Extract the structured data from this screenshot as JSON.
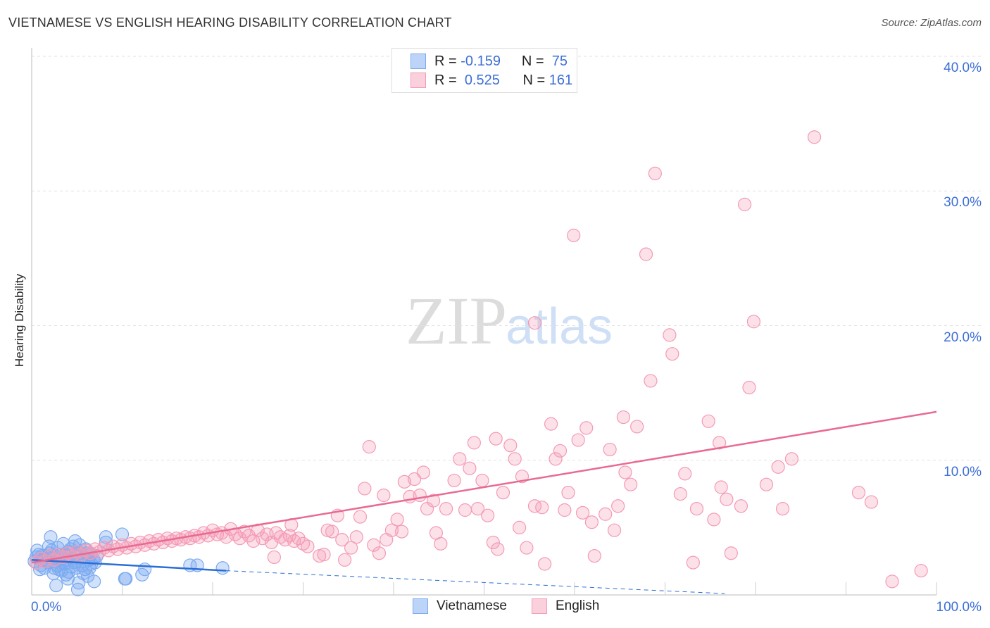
{
  "chart_data": {
    "type": "scatter",
    "title": "VIETNAMESE VS ENGLISH HEARING DISABILITY CORRELATION CHART",
    "source": "Source: ZipAtlas.com",
    "xlabel": "",
    "ylabel": "Hearing Disability",
    "xlim": [
      0,
      100
    ],
    "ylim": [
      0,
      40
    ],
    "x_tick_labels": [
      "0.0%",
      "100.0%"
    ],
    "y_ticks": [
      10,
      20,
      30,
      40
    ],
    "y_tick_labels": [
      "10.0%",
      "20.0%",
      "30.0%",
      "40.0%"
    ],
    "grid": true,
    "watermark": "ZIPatlas",
    "legend": {
      "placement": "top-center",
      "items": [
        {
          "name": "Vietnamese",
          "r_label": "R =",
          "r": "-0.159",
          "n_label": "N =",
          "n": "75",
          "color": "#7aaaf0"
        },
        {
          "name": "English",
          "r_label": "R =",
          "r": "0.525",
          "n_label": "N =",
          "n": "161",
          "color": "#f49ab5"
        }
      ]
    },
    "series": [
      {
        "name": "Vietnamese",
        "color": "#7aaaf0",
        "line_color": "#2a6ed6",
        "trend": {
          "x0": 0,
          "y0": 2.6,
          "x1": 21.5,
          "y1": 1.8,
          "x_dash_end": 76.6,
          "y_dash_end": 0.1
        },
        "points": [
          [
            0.3,
            2.5
          ],
          [
            0.5,
            2.8
          ],
          [
            0.8,
            3.0
          ],
          [
            1,
            2.2
          ],
          [
            1.2,
            2.6
          ],
          [
            1.5,
            2.9
          ],
          [
            1.8,
            2.4
          ],
          [
            2,
            3.1
          ],
          [
            2.1,
            4.3
          ],
          [
            2.3,
            2.7
          ],
          [
            2.5,
            2.0
          ],
          [
            2.7,
            0.7
          ],
          [
            2.9,
            3.5
          ],
          [
            3.1,
            2.6
          ],
          [
            3.3,
            1.8
          ],
          [
            3.5,
            3.8
          ],
          [
            3.6,
            2.3
          ],
          [
            3.8,
            1.5
          ],
          [
            4,
            3.2
          ],
          [
            4.2,
            2.9
          ],
          [
            4.4,
            2.1
          ],
          [
            4.6,
            3.6
          ],
          [
            4.8,
            4.0
          ],
          [
            5,
            2.5
          ],
          [
            5.1,
            0.4
          ],
          [
            5.2,
            0.9
          ],
          [
            5.4,
            3.1
          ],
          [
            5.6,
            2.2
          ],
          [
            5.8,
            2.8
          ],
          [
            6,
            3.4
          ],
          [
            6.2,
            1.4
          ],
          [
            6.3,
            2.6
          ],
          [
            6.5,
            3.0
          ],
          [
            6.9,
            1.0
          ],
          [
            7,
            2.4
          ],
          [
            0.6,
            3.3
          ],
          [
            1.4,
            2.0
          ],
          [
            1.9,
            3.6
          ],
          [
            2.6,
            2.9
          ],
          [
            3,
            1.9
          ],
          [
            3.4,
            2.4
          ],
          [
            3.7,
            3.0
          ],
          [
            4.1,
            1.7
          ],
          [
            4.5,
            2.7
          ],
          [
            4.9,
            2.0
          ],
          [
            5.3,
            3.7
          ],
          [
            5.9,
            1.9
          ],
          [
            6.6,
            2.3
          ],
          [
            7.2,
            2.9
          ],
          [
            1.1,
            2.9
          ],
          [
            1.6,
            2.5
          ],
          [
            2.2,
            3.3
          ],
          [
            2.8,
            2.2
          ],
          [
            3.2,
            3.0
          ],
          [
            3.9,
            2.6
          ],
          [
            4.3,
            3.4
          ],
          [
            4.7,
            2.4
          ],
          [
            5.5,
            2.7
          ],
          [
            6.1,
            3.1
          ],
          [
            6.8,
            2.7
          ],
          [
            0.9,
            1.9
          ],
          [
            2.4,
            1.6
          ],
          [
            4.0,
            1.2
          ],
          [
            5.7,
            1.6
          ],
          [
            6.4,
            2.0
          ],
          [
            8.2,
            4.3
          ],
          [
            8.2,
            3.9
          ],
          [
            10.0,
            4.5
          ],
          [
            10.3,
            1.2
          ],
          [
            10.4,
            1.2
          ],
          [
            12.2,
            1.5
          ],
          [
            12.5,
            1.9
          ],
          [
            17.5,
            2.2
          ],
          [
            18.3,
            2.2
          ],
          [
            21.1,
            2.0
          ]
        ]
      },
      {
        "name": "English",
        "color": "#f49ab5",
        "line_color": "#e86a92",
        "trend": {
          "x0": 0,
          "y0": 2.4,
          "x1": 100,
          "y1": 13.6
        },
        "points": [
          [
            86.5,
            34.0
          ],
          [
            68.9,
            31.3
          ],
          [
            78.8,
            29.0
          ],
          [
            59.9,
            26.7
          ],
          [
            67.9,
            25.3
          ],
          [
            55.6,
            20.2
          ],
          [
            79.8,
            20.3
          ],
          [
            70.5,
            19.3
          ],
          [
            70.8,
            17.9
          ],
          [
            68.4,
            15.9
          ],
          [
            79.3,
            15.4
          ],
          [
            65.4,
            13.2
          ],
          [
            57.4,
            12.7
          ],
          [
            74.8,
            12.9
          ],
          [
            66.9,
            12.5
          ],
          [
            61.3,
            12.4
          ],
          [
            51.3,
            11.6
          ],
          [
            48.9,
            11.3
          ],
          [
            60.4,
            11.5
          ],
          [
            76.0,
            11.3
          ],
          [
            52.9,
            11.1
          ],
          [
            37.3,
            11.0
          ],
          [
            63.9,
            10.8
          ],
          [
            58.4,
            10.7
          ],
          [
            53.4,
            10.1
          ],
          [
            47.3,
            10.1
          ],
          [
            57.9,
            10.1
          ],
          [
            84.0,
            10.1
          ],
          [
            43.3,
            9.1
          ],
          [
            82.5,
            9.5
          ],
          [
            48.4,
            9.4
          ],
          [
            65.6,
            9.1
          ],
          [
            72.2,
            9.0
          ],
          [
            42.3,
            8.6
          ],
          [
            41.2,
            8.4
          ],
          [
            54.2,
            8.8
          ],
          [
            49.8,
            8.5
          ],
          [
            46.7,
            8.5
          ],
          [
            66.2,
            8.2
          ],
          [
            36.8,
            7.9
          ],
          [
            81.2,
            8.2
          ],
          [
            76.2,
            8.0
          ],
          [
            52.1,
            7.6
          ],
          [
            71.7,
            7.5
          ],
          [
            59.3,
            7.6
          ],
          [
            91.4,
            7.6
          ],
          [
            38.9,
            7.4
          ],
          [
            42.9,
            7.4
          ],
          [
            41.8,
            7.3
          ],
          [
            92.8,
            6.9
          ],
          [
            76.8,
            7.1
          ],
          [
            44.4,
            7.0
          ],
          [
            64.8,
            6.6
          ],
          [
            78.4,
            6.6
          ],
          [
            55.6,
            6.6
          ],
          [
            56.4,
            6.5
          ],
          [
            73.5,
            6.4
          ],
          [
            83.0,
            6.4
          ],
          [
            43.7,
            6.4
          ],
          [
            45.8,
            6.4
          ],
          [
            47.9,
            6.3
          ],
          [
            49.3,
            6.4
          ],
          [
            58.9,
            6.3
          ],
          [
            60.9,
            6.1
          ],
          [
            63.4,
            6.0
          ],
          [
            50.4,
            5.9
          ],
          [
            33.8,
            5.9
          ],
          [
            36.3,
            5.8
          ],
          [
            61.9,
            5.4
          ],
          [
            75.4,
            5.6
          ],
          [
            40.4,
            5.6
          ],
          [
            28.7,
            5.2
          ],
          [
            53.9,
            5.0
          ],
          [
            32.7,
            4.8
          ],
          [
            33.2,
            4.7
          ],
          [
            39.8,
            4.8
          ],
          [
            40.9,
            4.7
          ],
          [
            64.4,
            4.8
          ],
          [
            44.7,
            4.6
          ],
          [
            35.9,
            4.3
          ],
          [
            34.3,
            4.1
          ],
          [
            39.2,
            4.1
          ],
          [
            51.0,
            3.9
          ],
          [
            45.2,
            3.8
          ],
          [
            37.8,
            3.7
          ],
          [
            35.3,
            3.5
          ],
          [
            51.5,
            3.4
          ],
          [
            54.7,
            3.5
          ],
          [
            30.5,
            3.6
          ],
          [
            77.3,
            3.1
          ],
          [
            62.2,
            2.9
          ],
          [
            38.4,
            3.1
          ],
          [
            32.3,
            3.0
          ],
          [
            31.8,
            2.9
          ],
          [
            26.8,
            2.8
          ],
          [
            34.6,
            2.6
          ],
          [
            56.7,
            2.3
          ],
          [
            73.1,
            2.4
          ],
          [
            98.3,
            1.8
          ],
          [
            95.1,
            1.0
          ],
          [
            0.5,
            2.4
          ],
          [
            1,
            2.7
          ],
          [
            1.5,
            2.5
          ],
          [
            2,
            2.9
          ],
          [
            2.5,
            2.6
          ],
          [
            3,
            3.0
          ],
          [
            3.5,
            2.8
          ],
          [
            4,
            3.1
          ],
          [
            4.5,
            2.9
          ],
          [
            5,
            3.2
          ],
          [
            5.5,
            3.0
          ],
          [
            6,
            3.3
          ],
          [
            6.5,
            3.1
          ],
          [
            7,
            3.4
          ],
          [
            7.5,
            3.2
          ],
          [
            8,
            3.5
          ],
          [
            8.5,
            3.3
          ],
          [
            9,
            3.6
          ],
          [
            9.5,
            3.4
          ],
          [
            10,
            3.7
          ],
          [
            10.5,
            3.5
          ],
          [
            11,
            3.8
          ],
          [
            11.5,
            3.6
          ],
          [
            12,
            3.9
          ],
          [
            12.5,
            3.7
          ],
          [
            13,
            4.0
          ],
          [
            13.5,
            3.8
          ],
          [
            14,
            4.1
          ],
          [
            14.5,
            3.9
          ],
          [
            15,
            4.2
          ],
          [
            15.5,
            4.0
          ],
          [
            16,
            4.2
          ],
          [
            16.5,
            4.1
          ],
          [
            17,
            4.3
          ],
          [
            17.5,
            4.2
          ],
          [
            18,
            4.4
          ],
          [
            18.5,
            4.3
          ],
          [
            19,
            4.6
          ],
          [
            19.5,
            4.4
          ],
          [
            20,
            4.8
          ],
          [
            20.5,
            4.5
          ],
          [
            21,
            4.6
          ],
          [
            21.5,
            4.3
          ],
          [
            22,
            4.9
          ],
          [
            22.5,
            4.5
          ],
          [
            23,
            4.2
          ],
          [
            23.5,
            4.7
          ],
          [
            24,
            4.4
          ],
          [
            24.5,
            4.0
          ],
          [
            25,
            4.8
          ],
          [
            25.5,
            4.2
          ],
          [
            26,
            4.5
          ],
          [
            26.5,
            3.9
          ],
          [
            27,
            4.6
          ],
          [
            27.5,
            4.3
          ],
          [
            28,
            4.1
          ],
          [
            28.5,
            4.4
          ],
          [
            29,
            4.0
          ],
          [
            29.5,
            4.2
          ],
          [
            30,
            3.8
          ]
        ]
      }
    ]
  }
}
